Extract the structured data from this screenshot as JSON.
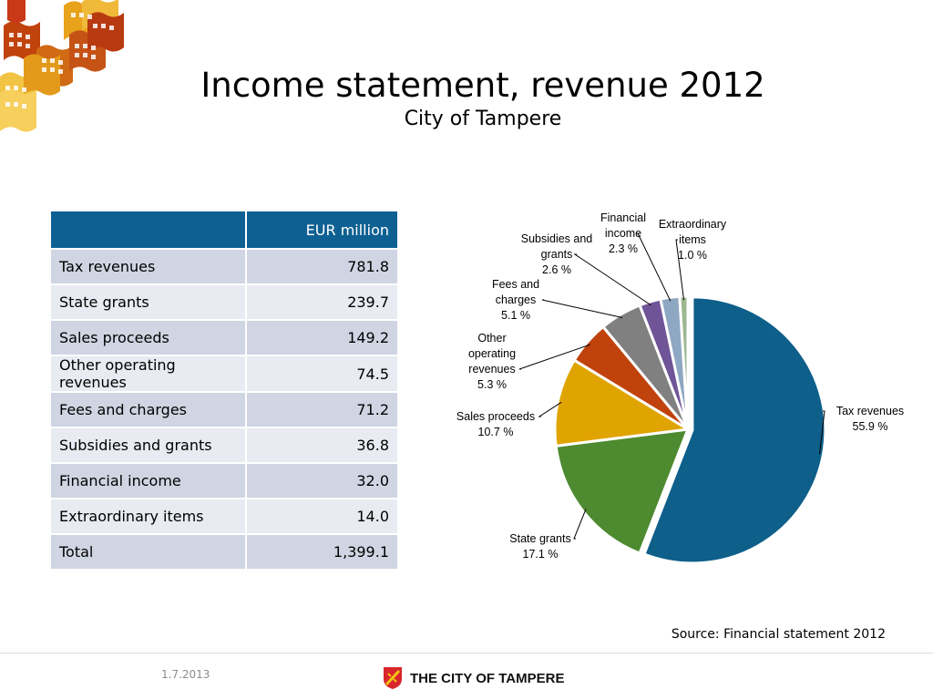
{
  "header": {
    "title": "Income statement, revenue 2012",
    "subtitle": "City of Tampere"
  },
  "table": {
    "header": "EUR million",
    "rows": [
      {
        "label": "Tax revenues",
        "value": "781.8"
      },
      {
        "label": "State grants",
        "value": "239.7"
      },
      {
        "label": "Sales proceeds",
        "value": "149.2"
      },
      {
        "label": "Other operating revenues",
        "value": "74.5"
      },
      {
        "label": "Fees and charges",
        "value": "71.2"
      },
      {
        "label": "Subsidies and grants",
        "value": "36.8"
      },
      {
        "label": "Financial income",
        "value": "32.0"
      },
      {
        "label": "Extraordinary items",
        "value": "14.0"
      },
      {
        "label": "Total",
        "value": "1,399.1"
      }
    ]
  },
  "chart_data": {
    "type": "pie",
    "categories": [
      "Tax revenues",
      "State grants",
      "Sales proceeds",
      "Other operating revenues",
      "Fees and charges",
      "Subsidies and grants",
      "Financial income",
      "Extraordinary items"
    ],
    "values": [
      55.9,
      17.1,
      10.7,
      5.3,
      5.1,
      2.6,
      2.3,
      1.0
    ],
    "unit": "%",
    "colors": [
      "#0e5f8a",
      "#4e8a30",
      "#e0a400",
      "#c0420c",
      "#808080",
      "#6f5497",
      "#8ea7c2",
      "#9bb890"
    ],
    "labels": [
      {
        "lines": [
          "Tax revenues",
          "55.9 %"
        ]
      },
      {
        "lines": [
          "State grants",
          "17.1 %"
        ]
      },
      {
        "lines": [
          "Sales proceeds",
          "10.7 %"
        ]
      },
      {
        "lines": [
          "Other",
          "operating",
          "revenues",
          "5.3 %"
        ]
      },
      {
        "lines": [
          "Fees and",
          "charges",
          "5.1 %"
        ]
      },
      {
        "lines": [
          "Subsidies and",
          "grants",
          "2.6 %"
        ]
      },
      {
        "lines": [
          "Financial",
          "income",
          "2.3 %"
        ]
      },
      {
        "lines": [
          "Extraordinary",
          "items",
          "1.0 %"
        ]
      }
    ]
  },
  "source": "Source: Financial statement 2012",
  "footer": {
    "date": "1.7.2013",
    "brand": "THE CITY OF TAMPERE"
  }
}
